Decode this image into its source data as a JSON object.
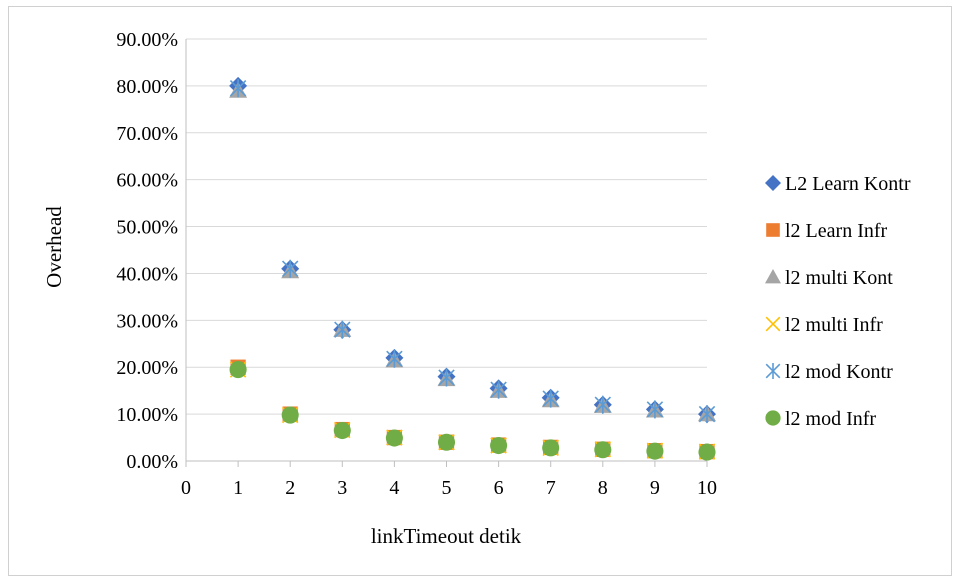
{
  "chart_data": {
    "type": "scatter",
    "title": "",
    "xlabel": "linkTimeout detik",
    "ylabel": "Overhead",
    "xlim": [
      0,
      10
    ],
    "ylim": [
      0,
      0.9
    ],
    "x_ticks": [
      "0",
      "1",
      "2",
      "3",
      "4",
      "5",
      "6",
      "7",
      "8",
      "9",
      "10"
    ],
    "y_ticks": [
      "0.00%",
      "10.00%",
      "20.00%",
      "30.00%",
      "40.00%",
      "50.00%",
      "60.00%",
      "70.00%",
      "80.00%",
      "90.00%"
    ],
    "grid": "horizontal",
    "legend_position": "right",
    "x": [
      1,
      2,
      3,
      4,
      5,
      6,
      7,
      8,
      9,
      10
    ],
    "series": [
      {
        "name": "L2 Learn  Kontr",
        "marker": "diamond",
        "color": "#4472C4",
        "values": [
          0.8,
          0.41,
          0.28,
          0.22,
          0.18,
          0.155,
          0.135,
          0.12,
          0.11,
          0.1
        ]
      },
      {
        "name": "l2 Learn Infr",
        "marker": "square",
        "color": "#ED7D31",
        "values": [
          0.2,
          0.1,
          0.067,
          0.05,
          0.04,
          0.034,
          0.029,
          0.025,
          0.022,
          0.02
        ]
      },
      {
        "name": "l2 multi Kont",
        "marker": "triangle",
        "color": "#A5A5A5",
        "values": [
          0.79,
          0.405,
          0.28,
          0.215,
          0.175,
          0.15,
          0.13,
          0.118,
          0.108,
          0.1
        ]
      },
      {
        "name": "l2 multi Infr",
        "marker": "x",
        "color": "#FFC000",
        "values": [
          0.195,
          0.098,
          0.066,
          0.05,
          0.04,
          0.033,
          0.028,
          0.025,
          0.022,
          0.02
        ]
      },
      {
        "name": "l2 mod Kontr",
        "marker": "star",
        "color": "#5B9BD5",
        "values": [
          0.795,
          0.41,
          0.28,
          0.218,
          0.178,
          0.152,
          0.133,
          0.12,
          0.11,
          0.1
        ]
      },
      {
        "name": "l2 mod Infr",
        "marker": "circle",
        "color": "#70AD47",
        "values": [
          0.195,
          0.098,
          0.065,
          0.049,
          0.04,
          0.033,
          0.028,
          0.024,
          0.021,
          0.019
        ]
      }
    ]
  }
}
